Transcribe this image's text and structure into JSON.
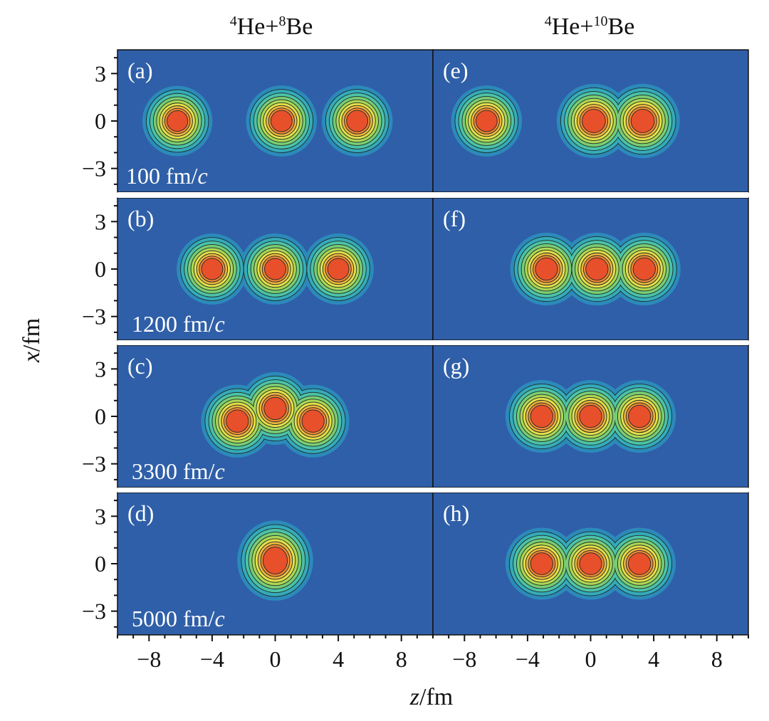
{
  "chart_data": {
    "type": "heatmap",
    "column_titles": [
      {
        "A": "4",
        "el1": "He+",
        "B": "8",
        "el2": "Be"
      },
      {
        "A": "4",
        "el1": "He+",
        "B": "10",
        "el2": "Be"
      }
    ],
    "xlabel": {
      "var": "z",
      "unit": "/fm"
    },
    "ylabel": {
      "var": "x",
      "unit": "/fm"
    },
    "xlim": [
      -10,
      10
    ],
    "ylim": [
      -4.5,
      4.5
    ],
    "xticks": [
      -8,
      -4,
      0,
      4,
      8
    ],
    "xtick_labels": [
      "−8",
      "−4",
      "0",
      "4",
      "8"
    ],
    "yticks": [
      3,
      0,
      -3
    ],
    "ytick_labels": [
      "3",
      "0",
      "−3"
    ],
    "time_unit": "fm/",
    "time_unit_c": "c",
    "colormap": [
      "#2f5fa8",
      "#2a9fc4",
      "#4cc3a8",
      "#8fd25c",
      "#e6e04a",
      "#f0a43c",
      "#e8502c"
    ],
    "panels": [
      {
        "label": "(a)",
        "row": 0,
        "col": 0,
        "time": "100",
        "blobs": [
          {
            "z": -6.2,
            "x": 0,
            "a": 1.35,
            "b": 1.35
          },
          {
            "z": 0.4,
            "x": 0,
            "a": 1.4,
            "b": 1.4
          },
          {
            "z": 5.2,
            "x": 0,
            "a": 1.4,
            "b": 1.4
          }
        ]
      },
      {
        "label": "(b)",
        "row": 1,
        "col": 0,
        "time": "1200",
        "blobs": [
          {
            "z": -4.0,
            "x": 0,
            "a": 1.4,
            "b": 1.4
          },
          {
            "z": 0.0,
            "x": 0,
            "a": 1.4,
            "b": 1.4
          },
          {
            "z": 4.0,
            "x": 0,
            "a": 1.4,
            "b": 1.4
          }
        ]
      },
      {
        "label": "(c)",
        "row": 2,
        "col": 0,
        "time": "3300",
        "blobs": [
          {
            "z": -2.4,
            "x": -0.3,
            "a": 1.5,
            "b": 1.5
          },
          {
            "z": 0.0,
            "x": 0.5,
            "a": 1.5,
            "b": 1.5
          },
          {
            "z": 2.4,
            "x": -0.3,
            "a": 1.5,
            "b": 1.5
          }
        ]
      },
      {
        "label": "(d)",
        "row": 3,
        "col": 0,
        "time": "5000",
        "blobs": [
          {
            "z": 0.0,
            "x": 0.2,
            "a": 1.7,
            "b": 1.95
          }
        ]
      },
      {
        "label": "(e)",
        "row": 0,
        "col": 1,
        "time": "",
        "blobs": [
          {
            "z": -6.6,
            "x": 0,
            "a": 1.4,
            "b": 1.4
          },
          {
            "z": 0.2,
            "x": 0,
            "a": 1.6,
            "b": 1.6
          },
          {
            "z": 3.3,
            "x": 0,
            "a": 1.6,
            "b": 1.6
          }
        ]
      },
      {
        "label": "(f)",
        "row": 1,
        "col": 1,
        "time": "",
        "blobs": [
          {
            "z": -2.8,
            "x": 0,
            "a": 1.5,
            "b": 1.5
          },
          {
            "z": 0.4,
            "x": 0,
            "a": 1.5,
            "b": 1.5
          },
          {
            "z": 3.4,
            "x": 0,
            "a": 1.5,
            "b": 1.5
          }
        ]
      },
      {
        "label": "(g)",
        "row": 2,
        "col": 1,
        "time": "",
        "blobs": [
          {
            "z": -3.1,
            "x": 0,
            "a": 1.5,
            "b": 1.5
          },
          {
            "z": 0.0,
            "x": 0,
            "a": 1.5,
            "b": 1.5
          },
          {
            "z": 3.1,
            "x": 0,
            "a": 1.5,
            "b": 1.5
          }
        ]
      },
      {
        "label": "(h)",
        "row": 3,
        "col": 1,
        "time": "",
        "blobs": [
          {
            "z": -3.1,
            "x": 0,
            "a": 1.5,
            "b": 1.45
          },
          {
            "z": 0.0,
            "x": 0,
            "a": 1.5,
            "b": 1.45
          },
          {
            "z": 3.1,
            "x": 0,
            "a": 1.5,
            "b": 1.45
          }
        ]
      }
    ]
  }
}
